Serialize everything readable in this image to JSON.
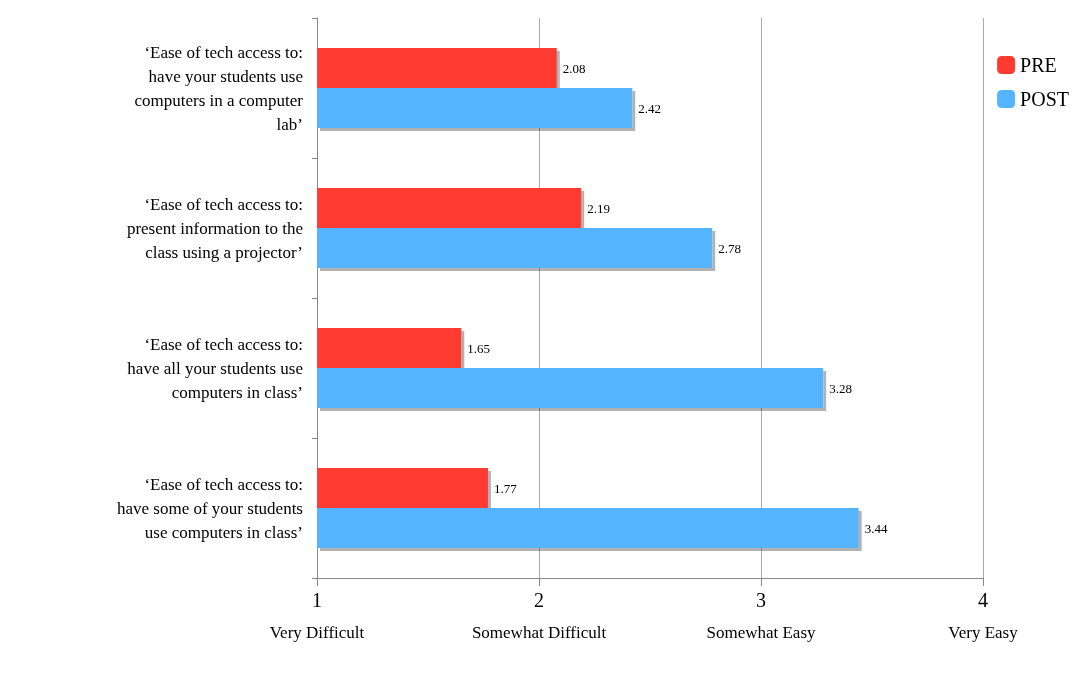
{
  "chart_data": {
    "type": "bar",
    "orientation": "horizontal",
    "categories": [
      "‘Ease of tech access to:\nhave your students use\ncomputers in a computer\nlab’",
      "‘Ease of tech access to:\npresent information to the\nclass using a projector’",
      "‘Ease of tech access to:\nhave all your students use\ncomputers in class’",
      "‘Ease of tech access to:\nhave some of your students\nuse computers in class’"
    ],
    "series": [
      {
        "name": "PRE",
        "color": "#ff3b30",
        "values": [
          2.08,
          2.19,
          1.65,
          1.77
        ]
      },
      {
        "name": "POST",
        "color": "#55b4ff",
        "values": [
          2.42,
          2.78,
          3.28,
          3.44
        ]
      }
    ],
    "xlim": [
      1,
      4
    ],
    "xticks": [
      {
        "value": 1,
        "label": "1\nVery Difficult"
      },
      {
        "value": 2,
        "label": "2\nSomewhat Difficult"
      },
      {
        "value": 3,
        "label": "3\nSomewhat Easy"
      },
      {
        "value": 4,
        "label": "4\nVery Easy"
      }
    ],
    "grid": "x",
    "legend": "top right",
    "data_labels": true
  }
}
